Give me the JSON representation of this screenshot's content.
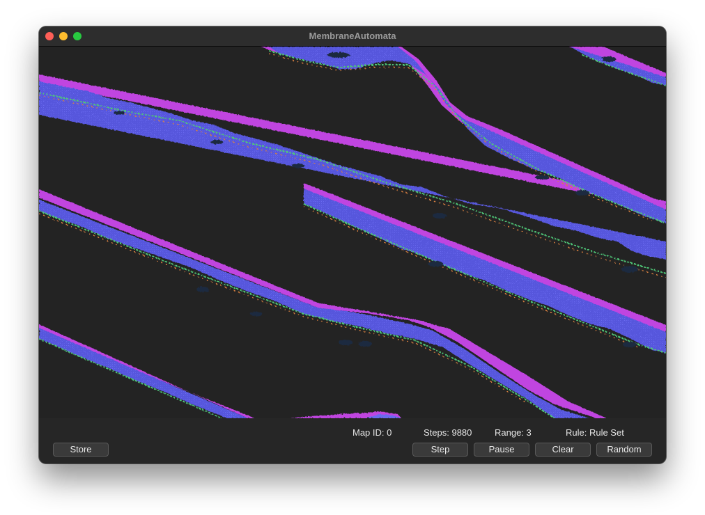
{
  "window": {
    "title": "MembraneAutomata"
  },
  "status": {
    "map_id": "Map ID: 0",
    "steps": "Steps: 9880",
    "range": "Range: 3",
    "rule": "Rule: Rule Set"
  },
  "buttons": {
    "store": "Store",
    "step": "Step",
    "pause": "Pause",
    "clear": "Clear",
    "random": "Random"
  },
  "colors": {
    "background": "#232323",
    "membrane_edge": "#c040e0",
    "membrane_body": "#5a5ae0",
    "membrane_inner": "#4a4ac8",
    "membrane_green": "#50c878",
    "membrane_orange": "#d88040",
    "membrane_dark": "#1c2a40"
  },
  "icons": [
    "close-button-icon",
    "minimize-button-icon",
    "zoom-button-icon"
  ]
}
